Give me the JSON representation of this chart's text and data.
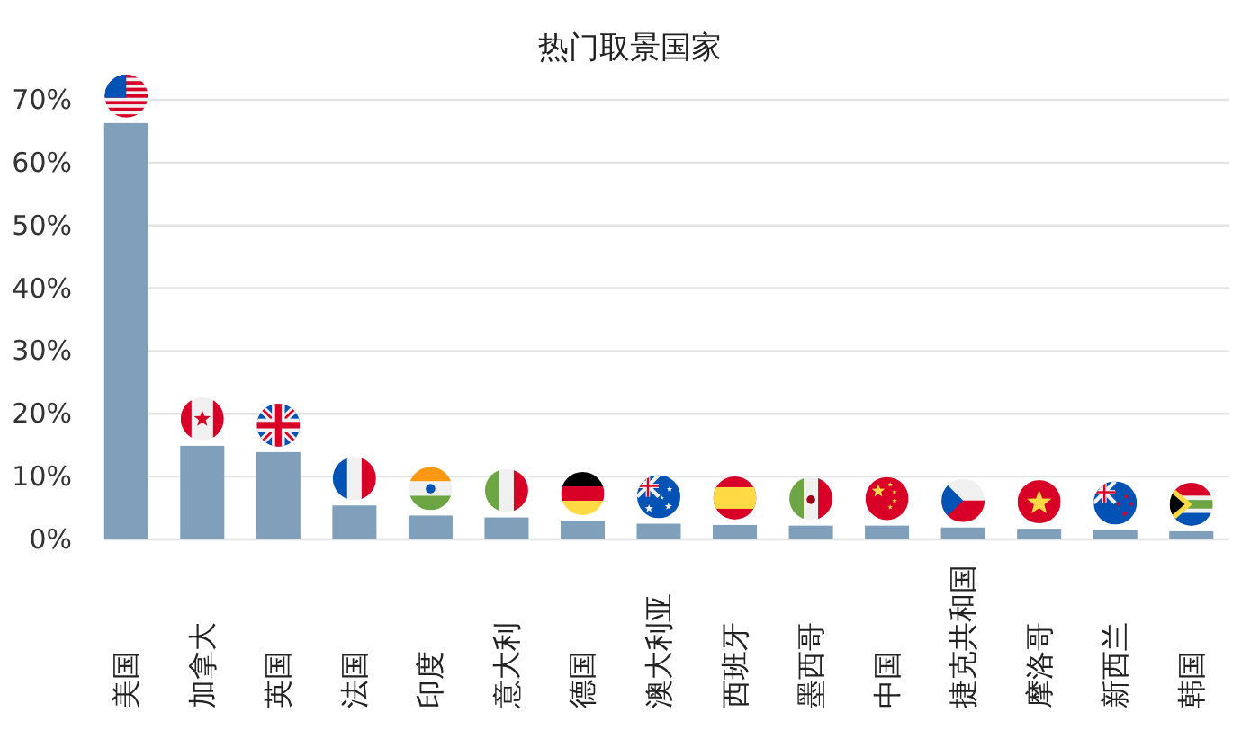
{
  "chart_data": {
    "type": "bar",
    "title": "热门取景国家",
    "categories": [
      "美国",
      "加拿大",
      "英国",
      "法国",
      "印度",
      "意大利",
      "德国",
      "澳大利亚",
      "西班牙",
      "墨西哥",
      "中国",
      "捷克共和国",
      "摩洛哥",
      "新西兰",
      "韩国"
    ],
    "values": [
      66.3,
      14.9,
      13.9,
      5.4,
      3.8,
      3.5,
      3.0,
      2.5,
      2.3,
      2.2,
      2.2,
      1.9,
      1.7,
      1.5,
      1.3
    ],
    "color": "#7f9fba",
    "ylim": [
      0,
      70
    ],
    "yticks": [
      {
        "value": 0,
        "label": "0%"
      },
      {
        "value": 10,
        "label": "10%"
      },
      {
        "value": 20,
        "label": "20%"
      },
      {
        "value": 30,
        "label": "30%"
      },
      {
        "value": 40,
        "label": "40%"
      },
      {
        "value": 50,
        "label": "50%"
      },
      {
        "value": 60,
        "label": "60%"
      },
      {
        "value": 70,
        "label": "70%"
      }
    ],
    "grid": "y"
  }
}
